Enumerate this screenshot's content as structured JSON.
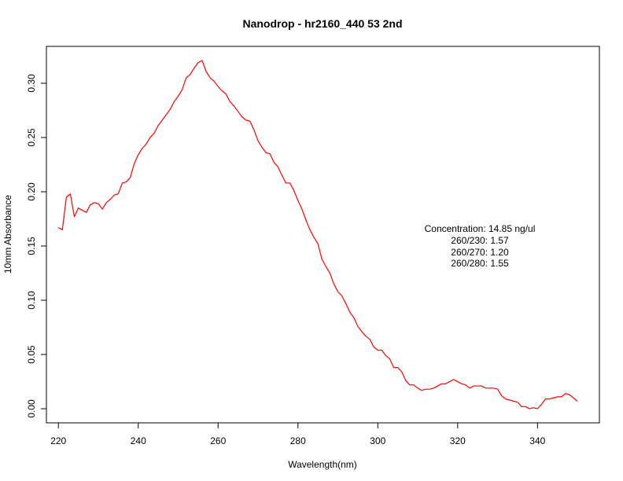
{
  "chart_data": {
    "type": "line",
    "title": "Nanodrop - hr2160_440 53 2nd",
    "xlabel": "Wavelength(nm)",
    "ylabel": "10mm Absorbance",
    "xlim": [
      217,
      355.5
    ],
    "ylim": [
      -0.013,
      0.334
    ],
    "x_ticks": [
      220,
      240,
      260,
      280,
      300,
      320,
      340
    ],
    "x_tick_labels": [
      "220",
      "240",
      "260",
      "280",
      "300",
      "320",
      "340"
    ],
    "y_ticks": [
      0.0,
      0.05,
      0.1,
      0.15,
      0.2,
      0.25,
      0.3
    ],
    "y_tick_labels": [
      "0.00",
      "0.05",
      "0.10",
      "0.15",
      "0.20",
      "0.25",
      "0.30"
    ],
    "grid": false,
    "series": [
      {
        "color": "#ff0000",
        "x": [
          220,
          221,
          222,
          223,
          224,
          225,
          226,
          227,
          228,
          229,
          230,
          231,
          232,
          233,
          234,
          235,
          236,
          237,
          238,
          239,
          240,
          241,
          242,
          243,
          244,
          245,
          246,
          247,
          248,
          249,
          250,
          251,
          252,
          253,
          254,
          255,
          256,
          257,
          258,
          259,
          260,
          261,
          262,
          263,
          264,
          265,
          266,
          267,
          268,
          269,
          270,
          271,
          272,
          273,
          274,
          275,
          276,
          277,
          278,
          279,
          280,
          281,
          282,
          283,
          284,
          285,
          286,
          287,
          288,
          289,
          290,
          291,
          292,
          293,
          294,
          295,
          296,
          297,
          298,
          299,
          300,
          301,
          302,
          303,
          304,
          305,
          306,
          307,
          308,
          309,
          310,
          311,
          312,
          313,
          314,
          315,
          316,
          317,
          318,
          319,
          320,
          321,
          322,
          323,
          324,
          325,
          326,
          327,
          328,
          329,
          330,
          331,
          332,
          333,
          334,
          335,
          336,
          337,
          338,
          339,
          340,
          341,
          342,
          343,
          344,
          345,
          346,
          347,
          348,
          349,
          350
        ],
        "y": [
          0.167,
          0.165,
          0.195,
          0.198,
          0.177,
          0.185,
          0.183,
          0.181,
          0.188,
          0.19,
          0.189,
          0.184,
          0.19,
          0.193,
          0.197,
          0.198,
          0.208,
          0.209,
          0.213,
          0.226,
          0.234,
          0.24,
          0.244,
          0.25,
          0.254,
          0.261,
          0.266,
          0.271,
          0.276,
          0.283,
          0.288,
          0.294,
          0.305,
          0.308,
          0.314,
          0.319,
          0.321,
          0.311,
          0.305,
          0.302,
          0.297,
          0.293,
          0.29,
          0.283,
          0.279,
          0.274,
          0.269,
          0.266,
          0.265,
          0.257,
          0.247,
          0.241,
          0.236,
          0.235,
          0.227,
          0.223,
          0.215,
          0.208,
          0.208,
          0.201,
          0.192,
          0.184,
          0.174,
          0.165,
          0.158,
          0.152,
          0.138,
          0.131,
          0.125,
          0.115,
          0.108,
          0.104,
          0.097,
          0.089,
          0.084,
          0.076,
          0.071,
          0.067,
          0.064,
          0.057,
          0.054,
          0.054,
          0.049,
          0.046,
          0.038,
          0.038,
          0.034,
          0.026,
          0.022,
          0.022,
          0.019,
          0.017,
          0.018,
          0.018,
          0.019,
          0.021,
          0.023,
          0.023,
          0.025,
          0.027,
          0.025,
          0.023,
          0.022,
          0.019,
          0.021,
          0.021,
          0.021,
          0.019,
          0.019,
          0.019,
          0.018,
          0.012,
          0.009,
          0.008,
          0.007,
          0.006,
          0.002,
          0.002,
          0.0,
          0.001,
          0.0,
          0.004,
          0.009,
          0.009,
          0.01,
          0.011,
          0.011,
          0.014,
          0.013,
          0.01,
          0.007
        ]
      }
    ],
    "annotations": [
      "Concentration: 14.85 ng/ul",
      "260/230: 1.57",
      "260/270: 1.20",
      "260/280: 1.55"
    ]
  }
}
